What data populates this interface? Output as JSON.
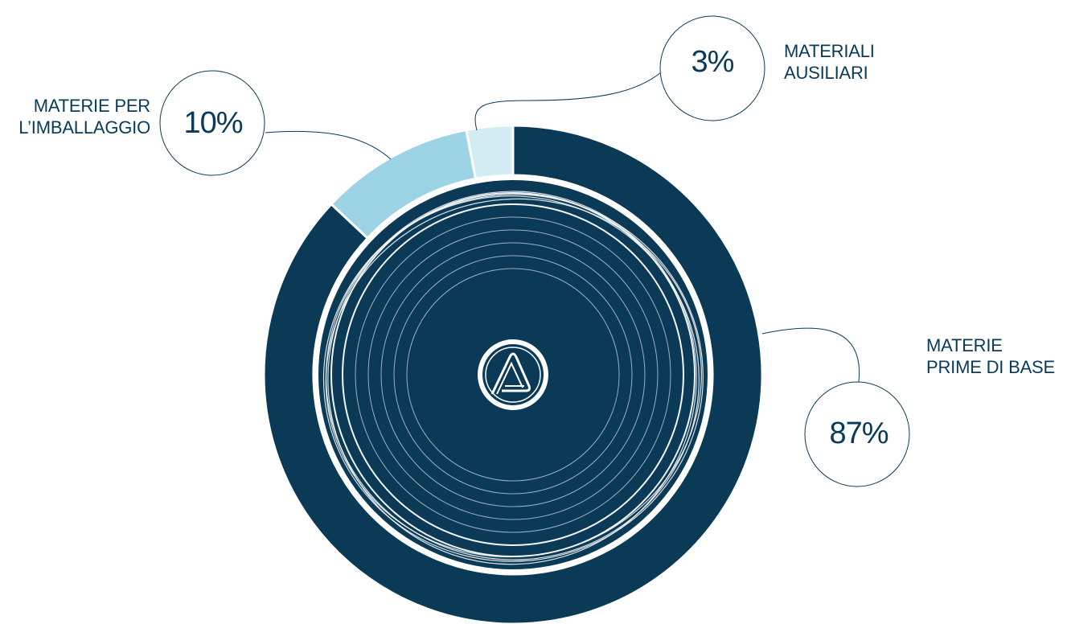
{
  "chart_data": {
    "type": "pie",
    "variant": "donut",
    "segments": [
      {
        "label": [
          "MATERIE",
          "PRIME DI BASE"
        ],
        "value": 87,
        "display": "87%",
        "color": "#0b3a57"
      },
      {
        "label": [
          "MATERIE PER",
          "L’IMBALLAGGIO"
        ],
        "value": 10,
        "display": "10%",
        "color": "#9cd4e6"
      },
      {
        "label": [
          "MATERIALI",
          "AUSILIARI"
        ],
        "value": 3,
        "display": "3%",
        "color": "#d3ebf3"
      }
    ],
    "center_icon": "brand-logo-icon",
    "colors": {
      "text": "#0a3a5a",
      "connector": "#0a3a5a",
      "background": "#ffffff"
    }
  }
}
